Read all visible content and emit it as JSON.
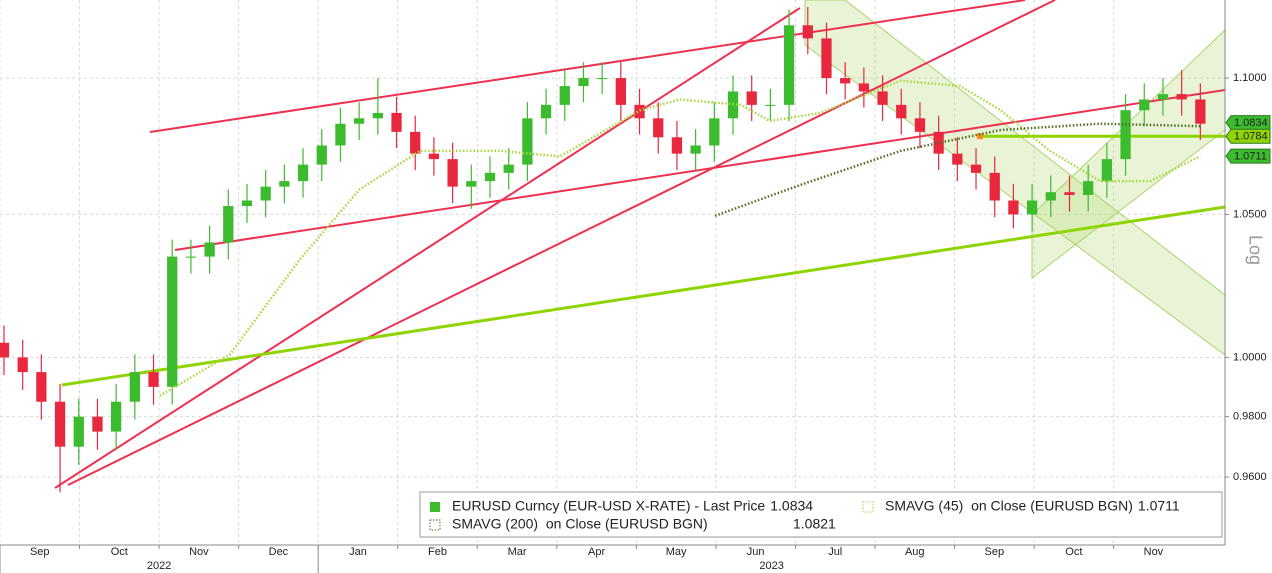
{
  "chart_data": {
    "type": "candlestick",
    "log_scale": true,
    "scale_label": "Log",
    "grid": true,
    "xlim": [
      0,
      15.4
    ],
    "ylim": [
      0.938,
      1.1297
    ],
    "xticks": [
      {
        "value": 0,
        "label": "Sep"
      },
      {
        "value": 1,
        "label": "Oct"
      },
      {
        "value": 2,
        "label": "Nov"
      },
      {
        "value": 3,
        "label": "Dec"
      },
      {
        "value": 4,
        "label": "Jan"
      },
      {
        "value": 5,
        "label": "Feb"
      },
      {
        "value": 6,
        "label": "Mar"
      },
      {
        "value": 7,
        "label": "Apr"
      },
      {
        "value": 8,
        "label": "May"
      },
      {
        "value": 9,
        "label": "Jun"
      },
      {
        "value": 10,
        "label": "Jul"
      },
      {
        "value": 11,
        "label": "Aug"
      },
      {
        "value": 12,
        "label": "Sep"
      },
      {
        "value": 13,
        "label": "Oct"
      },
      {
        "value": 14,
        "label": "Nov"
      }
    ],
    "year_ticks": [
      {
        "value": 0,
        "label": "2022"
      },
      {
        "value": 4,
        "label": "2023"
      }
    ],
    "yticks": [
      {
        "value": 0.96,
        "label": "0.9600"
      },
      {
        "value": 0.98,
        "label": "0.9800"
      },
      {
        "value": 1.0,
        "label": "1.0000"
      },
      {
        "value": 1.05,
        "label": "1.0500"
      },
      {
        "value": 1.1,
        "label": "1.1000"
      }
    ],
    "hline": 1.0784,
    "hline_color": "#8fd400",
    "x": [
      0.05,
      0.285,
      0.52,
      0.755,
      0.99,
      1.225,
      1.46,
      1.695,
      1.93,
      2.165,
      2.4,
      2.635,
      2.87,
      3.105,
      3.34,
      3.575,
      3.81,
      4.045,
      4.28,
      4.515,
      4.75,
      4.985,
      5.22,
      5.455,
      5.69,
      5.925,
      6.16,
      6.395,
      6.63,
      6.865,
      7.1,
      7.335,
      7.57,
      7.805,
      8.04,
      8.275,
      8.51,
      8.745,
      8.98,
      9.215,
      9.45,
      9.685,
      9.92,
      10.155,
      10.39,
      10.625,
      10.86,
      11.095,
      11.33,
      11.565,
      11.8,
      12.035,
      12.27,
      12.505,
      12.74,
      12.975,
      13.21,
      13.445,
      13.68,
      13.915,
      14.15,
      14.385,
      14.62,
      14.855,
      15.09
    ],
    "series": [
      {
        "name": "EURUSD Curncy (EUR-USD X-RATE) - Last Price",
        "last_value": 1.0834,
        "color": "#3dbb2e",
        "down_color": "#e8283e",
        "open": [
          1.005,
          1.0,
          0.995,
          0.985,
          0.97,
          0.98,
          0.975,
          0.985,
          0.995,
          0.99,
          1.035,
          1.035,
          1.04,
          1.053,
          1.055,
          1.06,
          1.062,
          1.068,
          1.075,
          1.083,
          1.085,
          1.087,
          1.08,
          1.072,
          1.07,
          1.06,
          1.062,
          1.065,
          1.068,
          1.085,
          1.09,
          1.097,
          1.1,
          1.1,
          1.09,
          1.085,
          1.078,
          1.072,
          1.075,
          1.085,
          1.095,
          1.09,
          1.09,
          1.12,
          1.115,
          1.1,
          1.098,
          1.095,
          1.09,
          1.085,
          1.08,
          1.072,
          1.068,
          1.065,
          1.055,
          1.05,
          1.055,
          1.058,
          1.057,
          1.062,
          1.07,
          1.088,
          1.092,
          1.094,
          1.092
        ],
        "high": [
          1.011,
          1.006,
          1.001,
          0.991,
          0.986,
          0.986,
          0.991,
          1.001,
          1.001,
          1.041,
          1.041,
          1.046,
          1.059,
          1.061,
          1.066,
          1.068,
          1.074,
          1.081,
          1.089,
          1.091,
          1.1,
          1.093,
          1.086,
          1.078,
          1.076,
          1.068,
          1.071,
          1.074,
          1.091,
          1.096,
          1.103,
          1.106,
          1.106,
          1.106,
          1.096,
          1.091,
          1.084,
          1.081,
          1.091,
          1.101,
          1.101,
          1.096,
          1.126,
          1.127,
          1.121,
          1.106,
          1.104,
          1.101,
          1.096,
          1.091,
          1.086,
          1.078,
          1.074,
          1.071,
          1.061,
          1.061,
          1.064,
          1.064,
          1.068,
          1.076,
          1.094,
          1.098,
          1.1,
          1.103,
          1.098
        ],
        "low": [
          0.994,
          0.989,
          0.979,
          0.955,
          0.964,
          0.969,
          0.969,
          0.979,
          0.984,
          0.984,
          1.029,
          1.029,
          1.034,
          1.047,
          1.049,
          1.054,
          1.056,
          1.062,
          1.069,
          1.077,
          1.079,
          1.074,
          1.066,
          1.064,
          1.054,
          1.052,
          1.056,
          1.059,
          1.062,
          1.079,
          1.084,
          1.091,
          1.094,
          1.084,
          1.079,
          1.072,
          1.066,
          1.066,
          1.069,
          1.079,
          1.084,
          1.084,
          1.084,
          1.109,
          1.094,
          1.092,
          1.089,
          1.084,
          1.079,
          1.074,
          1.066,
          1.062,
          1.059,
          1.049,
          1.045,
          1.044,
          1.049,
          1.051,
          1.051,
          1.056,
          1.064,
          1.082,
          1.086,
          1.086,
          1.077
        ],
        "close": [
          1.0,
          0.995,
          0.985,
          0.97,
          0.98,
          0.975,
          0.985,
          0.995,
          0.99,
          1.035,
          1.035,
          1.04,
          1.053,
          1.055,
          1.06,
          1.062,
          1.068,
          1.075,
          1.083,
          1.085,
          1.087,
          1.08,
          1.072,
          1.07,
          1.06,
          1.062,
          1.065,
          1.068,
          1.085,
          1.09,
          1.097,
          1.1,
          1.1,
          1.09,
          1.085,
          1.078,
          1.072,
          1.075,
          1.085,
          1.095,
          1.09,
          1.09,
          1.12,
          1.115,
          1.1,
          1.098,
          1.095,
          1.09,
          1.085,
          1.08,
          1.072,
          1.068,
          1.065,
          1.055,
          1.05,
          1.055,
          1.058,
          1.057,
          1.062,
          1.07,
          1.088,
          1.092,
          1.094,
          1.092,
          1.083
        ]
      },
      {
        "name": "SMAVG (45)  on Close (EURUSD BGN)",
        "last_value": 1.0711,
        "color": "#a6d83c",
        "x": [
          2.01,
          2.89,
          3.77,
          4.52,
          5.28,
          6.29,
          7.04,
          8.05,
          8.55,
          9.31,
          9.68,
          10.31,
          11.32,
          12.07,
          12.58,
          13.2,
          13.83,
          14.46,
          15.09
        ],
        "values": [
          0.987,
          1.001,
          1.034,
          1.059,
          1.073,
          1.073,
          1.071,
          1.088,
          1.092,
          1.09,
          1.084,
          1.087,
          1.099,
          1.097,
          1.088,
          1.073,
          1.062,
          1.062,
          1.0711
        ]
      },
      {
        "name": "SMAVG (200)  on Close (EURUSD BGN)",
        "last_value": 1.0821,
        "color": "#4f6e22",
        "x": [
          8.99,
          10.06,
          11.32,
          12.58,
          13.83,
          15.09
        ],
        "values": [
          1.0495,
          1.0606,
          1.073,
          1.0807,
          1.083,
          1.0821
        ]
      }
    ]
  }
}
